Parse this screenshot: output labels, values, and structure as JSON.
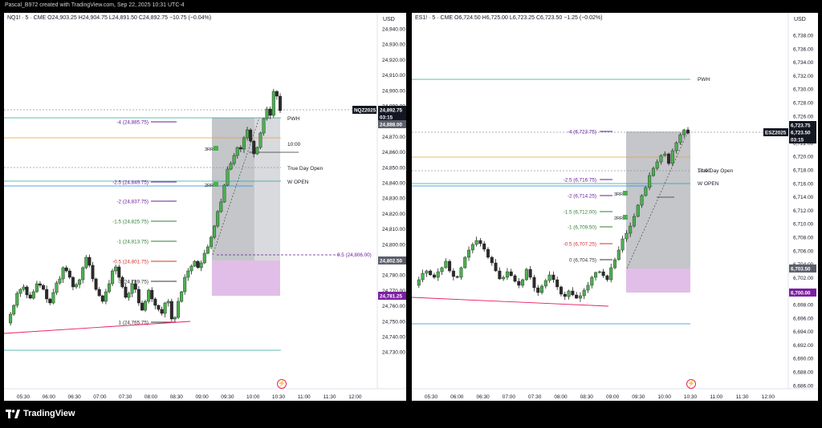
{
  "caption": "Pascal_B972 created with TradingView.com, Sep 22, 2025 10:31 UTC-4",
  "brand": "TradingView",
  "colors": {
    "up": "#26a69a",
    "candle_up": "#4caf50",
    "down": "#3c3c3c",
    "fib_purple": "#6a1b9a",
    "fib_green": "#2e7d32",
    "fib_red": "#d32f2f",
    "pwh": "#26a69a",
    "ten": "#e6a23c",
    "wopen": "#1e88e5",
    "trend": "#e91e63",
    "zone_gray": "#9e9e9e",
    "zone_pink": "#e1bee7"
  },
  "left": {
    "legend": "NQ1! · 5 · CME  O24,903.25  H24,904.75  L24,891.50  C24,892.75  −10.75 (−0.04%)",
    "currency": "USD",
    "price_ticks": [
      "24,940.00",
      "24,930.00",
      "24,920.00",
      "24,910.00",
      "24,900.00",
      "24,890.00",
      "24,880.00",
      "24,870.00",
      "24,860.00",
      "24,850.00",
      "24,840.00",
      "24,830.00",
      "24,820.00",
      "24,810.00",
      "24,800.00",
      "24,790.00",
      "24,780.00",
      "24,770.00",
      "24,760.00",
      "24,750.00",
      "24,740.00",
      "24,730.00"
    ],
    "time_ticks": [
      "05:30",
      "06:00",
      "06:30",
      "07:00",
      "07:30",
      "08:00",
      "08:30",
      "09:00",
      "09:30",
      "10:00",
      "10:30",
      "11:00",
      "11:30",
      "12:00"
    ],
    "tags": {
      "symbol": "NQZ2025",
      "last": "24,892.75",
      "countdown": "03:15",
      "t1": "24,888.00",
      "t2": "24,802.50",
      "t3": "24,781.25"
    },
    "levels": {
      "pwh": "PWH",
      "ten": "10:00",
      "tdo": "True Day Open",
      "wopen": "W OPEN"
    },
    "fibs": [
      {
        "label": "-4 (24,885.75)",
        "color": "purple"
      },
      {
        "label": "-2.5 (24,849.75)",
        "color": "purple"
      },
      {
        "label": "-2 (24,837.75)",
        "color": "purple"
      },
      {
        "label": "-1.5 (24,825.75)",
        "color": "green"
      },
      {
        "label": "-1 (24,813.75)",
        "color": "green"
      },
      {
        "label": "-0.5 (24,801.75)",
        "color": "red"
      },
      {
        "label": "0 (24,789.75)",
        "color": "dark"
      },
      {
        "label": "1 (24,765.75)",
        "color": "dark"
      },
      {
        "label": "0.5 (24,806.00)",
        "color": "purple"
      }
    ],
    "rr": [
      "3RR",
      "2RR"
    ]
  },
  "right": {
    "legend": "ES1! · 5 · CME  O6,724.50  H6,725.00  L6,723.25  C6,723.50  −1.25 (−0.02%)",
    "currency": "USD",
    "price_ticks": [
      "6,738.00",
      "6,736.00",
      "6,734.00",
      "6,732.00",
      "6,730.00",
      "6,728.00",
      "6,726.00",
      "6,724.00",
      "6,722.00",
      "6,720.00",
      "6,718.00",
      "6,716.00",
      "6,714.00",
      "6,712.00",
      "6,710.00",
      "6,708.00",
      "6,706.00",
      "6,704.00",
      "6,702.00",
      "6,700.00",
      "6,698.00",
      "6,696.00",
      "6,694.00",
      "6,692.00",
      "6,690.00",
      "6,688.00",
      "6,686.00"
    ],
    "time_ticks": [
      "05:30",
      "06:00",
      "06:30",
      "07:00",
      "07:30",
      "08:00",
      "08:30",
      "09:00",
      "09:30",
      "10:00",
      "10:30",
      "11:00",
      "11:30",
      "12:00"
    ],
    "tags": {
      "symbol": "ESZ2025",
      "last": "6,723.75",
      "price2": "6,723.50",
      "countdown": "03:15",
      "t1": "6,703.50",
      "t2": "6,700.00"
    },
    "levels": {
      "pwh": "PWH",
      "tdo": "True Day Open",
      "ten": "10:00",
      "wopen": "W OPEN"
    },
    "fibs": [
      {
        "label": "-4 (6,723.75)",
        "color": "purple"
      },
      {
        "label": "-2.5 (6,716.75)",
        "color": "purple"
      },
      {
        "label": "-2 (6,714.25)",
        "color": "purple"
      },
      {
        "label": "-1.5 (6,712.00)",
        "color": "green"
      },
      {
        "label": "-1 (6,709.50)",
        "color": "green"
      },
      {
        "label": "-0.5 (6,707.25)",
        "color": "red"
      },
      {
        "label": "0 (6,704.75)",
        "color": "dark"
      }
    ],
    "rr": [
      "3RR",
      "2RR"
    ]
  }
}
